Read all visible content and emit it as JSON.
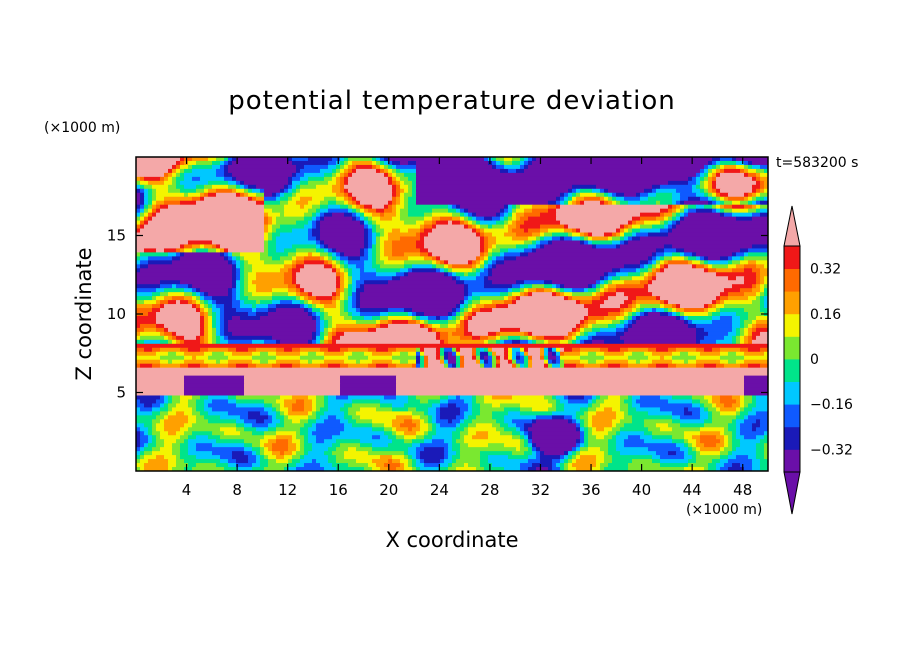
{
  "title": "potential temperature deviation",
  "time_label": "t=583200 s",
  "x_unit": "(×1000 m)",
  "y_unit": "(×1000 m)",
  "chart_data": {
    "type": "heatmap",
    "title": "potential temperature deviation",
    "xlabel": "X coordinate",
    "ylabel": "Z coordinate",
    "xlim": [
      0,
      50
    ],
    "ylim": [
      0,
      20
    ],
    "x_ticks": [
      4,
      8,
      12,
      16,
      20,
      24,
      28,
      32,
      36,
      40,
      44,
      48
    ],
    "y_ticks": [
      5,
      10,
      15
    ],
    "colorbar": {
      "levels": [
        -0.4,
        -0.32,
        -0.24,
        -0.16,
        -0.08,
        0,
        0.08,
        0.16,
        0.24,
        0.32,
        0.4
      ],
      "tick_labels": [
        "0.32",
        "0.16",
        "0",
        "−0.16",
        "−0.32"
      ],
      "tick_values": [
        0.32,
        0.16,
        0,
        -0.16,
        -0.32
      ],
      "colors": [
        "#6a0fa8",
        "#1a1ab8",
        "#0f5aff",
        "#00c8ff",
        "#00e48a",
        "#7ae830",
        "#f4f400",
        "#ffa000",
        "#ff6a00",
        "#f01818",
        "#f4a8a8"
      ],
      "extends": "both"
    }
  }
}
